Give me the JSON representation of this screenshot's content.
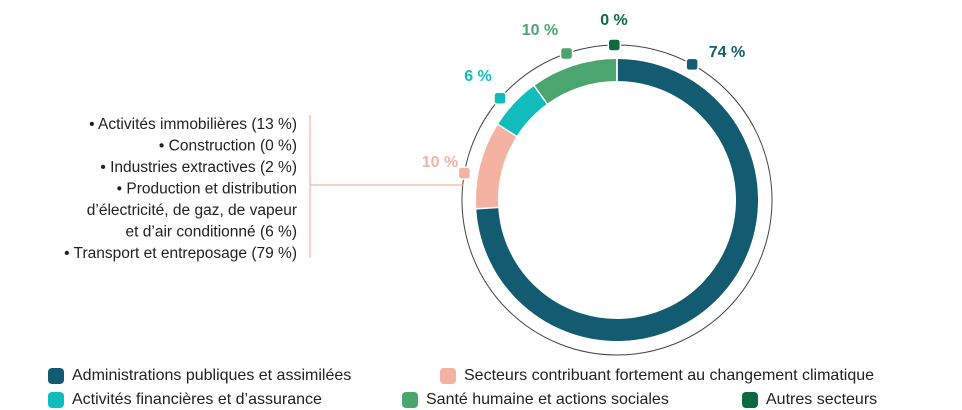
{
  "chart_data": {
    "type": "donut",
    "categories": [
      "Administrations publiques et assimilées",
      "Secteurs contribuant fortement au changement climatique",
      "Activités financières et d’assurance",
      "Santé humaine et actions sociales",
      "Autres secteurs"
    ],
    "values": [
      74,
      10,
      6,
      10,
      0
    ],
    "value_labels": [
      "74 %",
      "10 %",
      "6 %",
      "10 %",
      "0 %"
    ],
    "colors": [
      "#135b70",
      "#f4b3a2",
      "#10bcbc",
      "#4aa56f",
      "#0b6a3e"
    ],
    "annotation_lines": [
      "• Activités immobilières (13 %)",
      "• Construction (0 %)",
      "• Industries extractives (2 %)",
      "• Production et distribution",
      "d’électricité, de gaz, de vapeur",
      "et d’air conditionné (6 %)",
      "• Transport et entreposage (79 %)"
    ]
  }
}
